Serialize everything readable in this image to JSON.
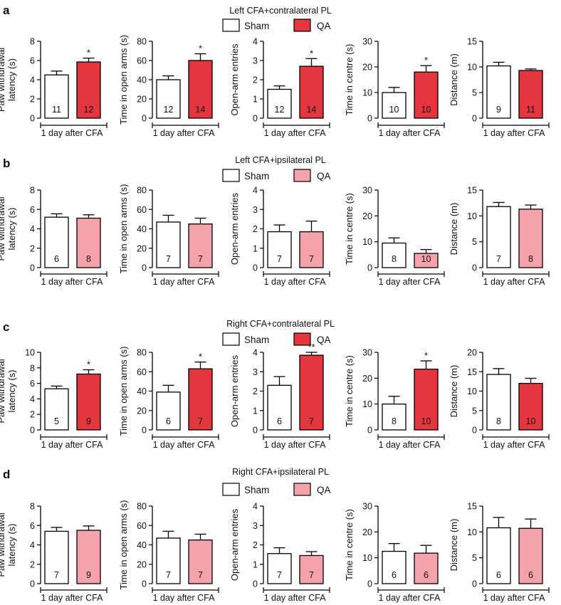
{
  "colors": {
    "sham": "#ffffff",
    "qa_dark": "#e3363f",
    "qa_light": "#f5a3ab",
    "axis": "#000000"
  },
  "chart_data": [
    {
      "panel": "a",
      "title": "Left CFA+contralateral PL",
      "qa_color": "qa_dark",
      "legend": [
        "Sham",
        "QA"
      ],
      "charts": [
        {
          "type": "bar",
          "ylabel": "Paw withdrawal latency (s)",
          "ylabel_lines": [
            "Paw withdrawal",
            "latency (s)"
          ],
          "xlabel": "1 day after CFA",
          "ylim": [
            0,
            8
          ],
          "yticks": [
            0,
            2,
            4,
            6,
            8
          ],
          "categories": [
            "Sham",
            "QA"
          ],
          "values": [
            4.5,
            5.85
          ],
          "errors": [
            0.4,
            0.4
          ],
          "n": [
            "11",
            "12"
          ],
          "sig": [
            "",
            "*"
          ]
        },
        {
          "type": "bar",
          "ylabel": "Time in open arms (s)",
          "ylabel_lines": [
            "Time in open arms (s)"
          ],
          "xlabel": "1 day after CFA",
          "ylim": [
            0,
            80
          ],
          "yticks": [
            0,
            20,
            40,
            60,
            80
          ],
          "categories": [
            "Sham",
            "QA"
          ],
          "values": [
            40,
            60
          ],
          "errors": [
            4,
            7
          ],
          "n": [
            "12",
            "14"
          ],
          "sig": [
            "",
            "*"
          ]
        },
        {
          "type": "bar",
          "ylabel": "Open-arm entries",
          "ylabel_lines": [
            "Open-arm entries"
          ],
          "xlabel": "1 day after CFA",
          "ylim": [
            0,
            4
          ],
          "yticks": [
            0,
            1,
            2,
            3,
            4
          ],
          "categories": [
            "Sham",
            "QA"
          ],
          "values": [
            1.5,
            2.7
          ],
          "errors": [
            0.18,
            0.4
          ],
          "n": [
            "12",
            "14"
          ],
          "sig": [
            "",
            "*"
          ]
        },
        {
          "type": "bar",
          "ylabel": "Time in centre (s)",
          "ylabel_lines": [
            "Time in centre (s)"
          ],
          "xlabel": "1 day after CFA",
          "ylim": [
            0,
            30
          ],
          "yticks": [
            0,
            10,
            20,
            30
          ],
          "categories": [
            "Sham",
            "QA"
          ],
          "values": [
            10,
            18
          ],
          "errors": [
            2,
            2.5
          ],
          "n": [
            "10",
            "10"
          ],
          "sig": [
            "",
            "*"
          ]
        },
        {
          "type": "bar",
          "ylabel": "Distance (m)",
          "ylabel_lines": [
            "Distance (m)"
          ],
          "xlabel": "1 day after CFA",
          "ylim": [
            0,
            15
          ],
          "yticks": [
            0,
            5,
            10,
            15
          ],
          "categories": [
            "Sham",
            "QA"
          ],
          "values": [
            10.2,
            9.3
          ],
          "errors": [
            0.7,
            0.3
          ],
          "n": [
            "9",
            "11"
          ],
          "sig": [
            "",
            ""
          ]
        }
      ]
    },
    {
      "panel": "b",
      "title": "Left CFA+ipsilateral PL",
      "qa_color": "qa_light",
      "legend": [
        "Sham",
        "QA"
      ],
      "charts": [
        {
          "type": "bar",
          "ylabel": "Paw withdrawal latency (s)",
          "ylabel_lines": [
            "Paw withdrawal",
            "latency (s)"
          ],
          "xlabel": "1 day after CFA",
          "ylim": [
            0,
            8
          ],
          "yticks": [
            0,
            2,
            4,
            6,
            8
          ],
          "categories": [
            "Sham",
            "QA"
          ],
          "values": [
            5.2,
            5.1
          ],
          "errors": [
            0.35,
            0.35
          ],
          "n": [
            "6",
            "8"
          ],
          "sig": [
            "",
            ""
          ]
        },
        {
          "type": "bar",
          "ylabel": "Time in open arms (s)",
          "ylabel_lines": [
            "Time in open arms (s)"
          ],
          "xlabel": "1 day after CFA",
          "ylim": [
            0,
            80
          ],
          "yticks": [
            0,
            20,
            40,
            60,
            80
          ],
          "categories": [
            "Sham",
            "QA"
          ],
          "values": [
            47,
            45
          ],
          "errors": [
            7,
            6
          ],
          "n": [
            "7",
            "7"
          ],
          "sig": [
            "",
            ""
          ]
        },
        {
          "type": "bar",
          "ylabel": "Open-arm entries",
          "ylabel_lines": [
            "Open-arm entries"
          ],
          "xlabel": "1 day after CFA",
          "ylim": [
            0,
            4
          ],
          "yticks": [
            0,
            1,
            2,
            3,
            4
          ],
          "categories": [
            "Sham",
            "QA"
          ],
          "values": [
            1.85,
            1.85
          ],
          "errors": [
            0.35,
            0.55
          ],
          "n": [
            "7",
            "7"
          ],
          "sig": [
            "",
            ""
          ]
        },
        {
          "type": "bar",
          "ylabel": "Time in centre (s)",
          "ylabel_lines": [
            "Time in centre (s)"
          ],
          "xlabel": "1 day after CFA",
          "ylim": [
            0,
            30
          ],
          "yticks": [
            0,
            10,
            20,
            30
          ],
          "categories": [
            "Sham",
            "QA"
          ],
          "values": [
            9.5,
            5.5
          ],
          "errors": [
            2,
            1.5
          ],
          "n": [
            "8",
            "10"
          ],
          "sig": [
            "",
            ""
          ]
        },
        {
          "type": "bar",
          "ylabel": "Distance (m)",
          "ylabel_lines": [
            "Distance (m)"
          ],
          "xlabel": "1 day after CFA",
          "ylim": [
            0,
            15
          ],
          "yticks": [
            0,
            5,
            10,
            15
          ],
          "categories": [
            "Sham",
            "QA"
          ],
          "values": [
            11.8,
            11.3
          ],
          "errors": [
            0.8,
            0.8
          ],
          "n": [
            "7",
            "8"
          ],
          "sig": [
            "",
            ""
          ]
        }
      ]
    },
    {
      "panel": "c",
      "title": "Right CFA+contralateral PL",
      "qa_color": "qa_dark",
      "legend": [
        "Sham",
        "QA"
      ],
      "charts": [
        {
          "type": "bar",
          "ylabel": "Paw withdrawal latency (s)",
          "ylabel_lines": [
            "Paw withdrawal",
            "latency (s)"
          ],
          "xlabel": "1 day after CFA",
          "ylim": [
            0,
            10
          ],
          "yticks": [
            0,
            2,
            4,
            6,
            8,
            10
          ],
          "categories": [
            "Sham",
            "QA"
          ],
          "values": [
            5.3,
            7.2
          ],
          "errors": [
            0.35,
            0.55
          ],
          "n": [
            "5",
            "9"
          ],
          "sig": [
            "",
            "*"
          ]
        },
        {
          "type": "bar",
          "ylabel": "Time in open arms (s)",
          "ylabel_lines": [
            "Time in open arms (s)"
          ],
          "xlabel": "1 day after CFA",
          "ylim": [
            0,
            80
          ],
          "yticks": [
            0,
            20,
            40,
            60,
            80
          ],
          "categories": [
            "Sham",
            "QA"
          ],
          "values": [
            39,
            63
          ],
          "errors": [
            7,
            7
          ],
          "n": [
            "6",
            "7"
          ],
          "sig": [
            "",
            "*"
          ]
        },
        {
          "type": "bar",
          "ylabel": "Open-arm entries",
          "ylabel_lines": [
            "Open-arm entries"
          ],
          "xlabel": "1 day after CFA",
          "ylim": [
            0,
            4
          ],
          "yticks": [
            0,
            1,
            2,
            3,
            4
          ],
          "categories": [
            "Sham",
            "QA"
          ],
          "values": [
            2.3,
            3.85
          ],
          "errors": [
            0.45,
            0.15
          ],
          "n": [
            "6",
            "7"
          ],
          "sig": [
            "",
            "**"
          ]
        },
        {
          "type": "bar",
          "ylabel": "Time in centre (s)",
          "ylabel_lines": [
            "Time in centre (s)"
          ],
          "xlabel": "1 day after CFA",
          "ylim": [
            0,
            30
          ],
          "yticks": [
            0,
            10,
            20,
            30
          ],
          "categories": [
            "Sham",
            "QA"
          ],
          "values": [
            10,
            23.5
          ],
          "errors": [
            3,
            3.2
          ],
          "n": [
            "8",
            "10"
          ],
          "sig": [
            "",
            "*"
          ]
        },
        {
          "type": "bar",
          "ylabel": "Distance (m)",
          "ylabel_lines": [
            "Distance (m)"
          ],
          "xlabel": "1 day after CFA",
          "ylim": [
            0,
            20
          ],
          "yticks": [
            0,
            5,
            10,
            15,
            20
          ],
          "categories": [
            "Sham",
            "QA"
          ],
          "values": [
            14.3,
            12
          ],
          "errors": [
            1.5,
            1.3
          ],
          "n": [
            "8",
            "10"
          ],
          "sig": [
            "",
            ""
          ]
        }
      ]
    },
    {
      "panel": "d",
      "title": "Right CFA+ipsilateral PL",
      "qa_color": "qa_light",
      "legend": [
        "Sham",
        "QA"
      ],
      "charts": [
        {
          "type": "bar",
          "ylabel": "Paw withdrawal latency (s)",
          "ylabel_lines": [
            "Paw withdrawal",
            "latency (s)"
          ],
          "xlabel": "1 day after CFA",
          "ylim": [
            0,
            8
          ],
          "yticks": [
            0,
            2,
            4,
            6,
            8
          ],
          "categories": [
            "Sham",
            "QA"
          ],
          "values": [
            5.4,
            5.5
          ],
          "errors": [
            0.4,
            0.45
          ],
          "n": [
            "7",
            "9"
          ],
          "sig": [
            "",
            ""
          ]
        },
        {
          "type": "bar",
          "ylabel": "Time in open arms (s)",
          "ylabel_lines": [
            "Time in open arms (s)"
          ],
          "xlabel": "1 day after CFA",
          "ylim": [
            0,
            80
          ],
          "yticks": [
            0,
            20,
            40,
            60,
            80
          ],
          "categories": [
            "Sham",
            "QA"
          ],
          "values": [
            47,
            45
          ],
          "errors": [
            7,
            6
          ],
          "n": [
            "7",
            "7"
          ],
          "sig": [
            "",
            ""
          ]
        },
        {
          "type": "bar",
          "ylabel": "Open-arm entries",
          "ylabel_lines": [
            "Open-arm entries"
          ],
          "xlabel": "1 day after CFA",
          "ylim": [
            0,
            4
          ],
          "yticks": [
            0,
            1,
            2,
            3,
            4
          ],
          "categories": [
            "Sham",
            "QA"
          ],
          "values": [
            1.55,
            1.45
          ],
          "errors": [
            0.3,
            0.2
          ],
          "n": [
            "7",
            "7"
          ],
          "sig": [
            "",
            ""
          ]
        },
        {
          "type": "bar",
          "ylabel": "Time in centre (s)",
          "ylabel_lines": [
            "Time in centre (s)"
          ],
          "xlabel": "1 day after CFA",
          "ylim": [
            0,
            30
          ],
          "yticks": [
            0,
            10,
            20,
            30
          ],
          "categories": [
            "Sham",
            "QA"
          ],
          "values": [
            12.5,
            11.8
          ],
          "errors": [
            3,
            3
          ],
          "n": [
            "6",
            "6"
          ],
          "sig": [
            "",
            ""
          ]
        },
        {
          "type": "bar",
          "ylabel": "Distance (m)",
          "ylabel_lines": [
            "Distance (m)"
          ],
          "xlabel": "1 day after CFA",
          "ylim": [
            0,
            15
          ],
          "yticks": [
            0,
            5,
            10,
            15
          ],
          "categories": [
            "Sham",
            "QA"
          ],
          "values": [
            10.8,
            10.7
          ],
          "errors": [
            2,
            1.8
          ],
          "n": [
            "6",
            "6"
          ],
          "sig": [
            "",
            ""
          ]
        }
      ]
    }
  ]
}
